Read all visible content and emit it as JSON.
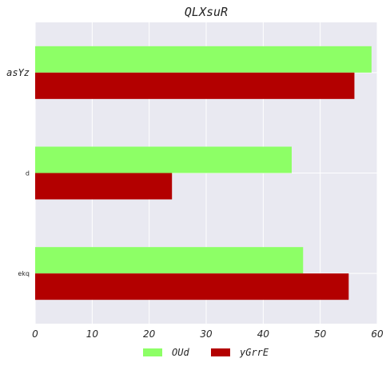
{
  "chart_data": {
    "type": "bar",
    "orientation": "horizontal",
    "title": "QLXsuR",
    "xlabel": "",
    "ylabel": "",
    "categories": [
      "asYz",
      "d",
      "ekq"
    ],
    "series": [
      {
        "name": "OUd",
        "color": "#8dff66",
        "values": [
          59,
          45,
          47
        ]
      },
      {
        "name": "yGrrE",
        "color": "#b30000",
        "values": [
          56,
          24,
          55
        ]
      }
    ],
    "xlim": [
      0,
      60
    ],
    "xticks": [
      0,
      10,
      20,
      30,
      40,
      50,
      60
    ],
    "grid": true,
    "legend_position": "bottom-center",
    "plot_background": "#e9e9f1",
    "grid_color": "#ffffff"
  }
}
